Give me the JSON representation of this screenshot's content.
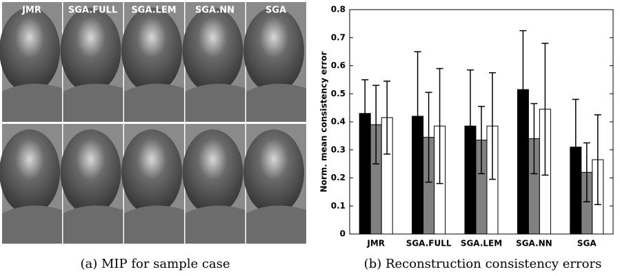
{
  "figure_a": {
    "labels": [
      "JMR",
      "SGA.FULL",
      "SGA.LEM",
      "SGA.NN",
      "SGA"
    ],
    "caption": "(a) MIP for sample case"
  },
  "chart_data": {
    "type": "bar",
    "caption": "(b) Reconstruction consistency errors",
    "y_label": "Norm. mean consistency error",
    "categories": [
      "JMR",
      "SGA.FULL",
      "SGA.LEM",
      "SGA.NN",
      "SGA"
    ],
    "series": [
      {
        "color": "#000000",
        "values": [
          0.43,
          0.42,
          0.385,
          0.515,
          0.31
        ],
        "errors": [
          0.12,
          0.23,
          0.2,
          0.21,
          0.17
        ]
      },
      {
        "color": "#808080",
        "values": [
          0.39,
          0.345,
          0.335,
          0.34,
          0.22
        ],
        "errors": [
          0.14,
          0.16,
          0.12,
          0.125,
          0.105
        ]
      },
      {
        "color": "#ffffff",
        "values": [
          0.415,
          0.385,
          0.385,
          0.445,
          0.265
        ],
        "errors": [
          0.13,
          0.205,
          0.19,
          0.235,
          0.16
        ]
      }
    ],
    "ylim": [
      0,
      0.8
    ],
    "yticks": [
      0,
      0.1,
      0.2,
      0.3,
      0.4,
      0.5,
      0.6,
      0.7,
      0.8
    ]
  }
}
